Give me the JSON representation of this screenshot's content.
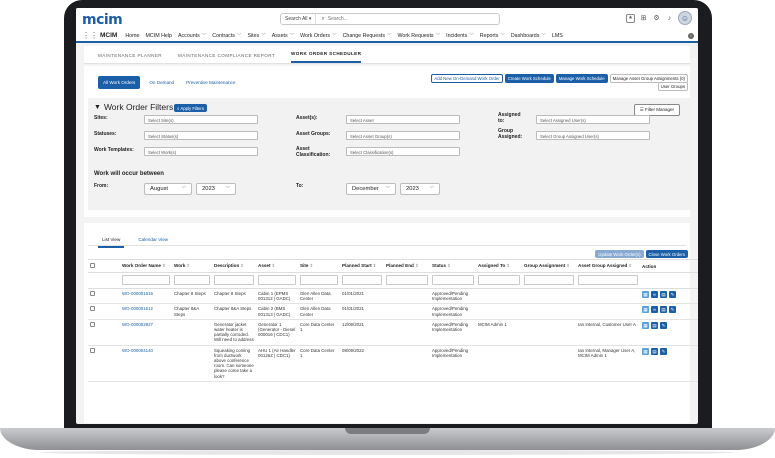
{
  "header": {
    "logo_text": "mcim",
    "search_scope": "Search All",
    "search_placeholder": "Search..."
  },
  "nav": {
    "app_name": "MCIM",
    "items": [
      "Home",
      "MCIM Help",
      "Accounts",
      "Contracts",
      "Sites",
      "Assets",
      "Work Orders",
      "Change Requests",
      "Work Requests",
      "Incidents",
      "Reports",
      "Dashboards",
      "LMS"
    ],
    "dropdown_flags": [
      false,
      false,
      true,
      true,
      true,
      true,
      true,
      true,
      true,
      true,
      true,
      true,
      false
    ]
  },
  "page_tabs": [
    "MAINTENANCE PLANNER",
    "MAINTENANCE COMPLIANCE REPORT",
    "WORK ORDER SCHEDULER"
  ],
  "sub_tabs": [
    "All Work Orders",
    "On Demand",
    "Preventive Maintenance"
  ],
  "actions": {
    "new_on_demand": "Add New On-Demand Work Order",
    "create_schedule": "Create Work Schedule",
    "manage_schedule": "Manage Work Schedule",
    "manage_asset_groups": "Manage Asset Group Assignments (0)",
    "user_groups": "User Groups"
  },
  "filters": {
    "title": "Work Order Filters",
    "apply": "Apply Filters",
    "manager": "Filter Manager",
    "sites_label": "Sites:",
    "sites_ph": "Select Site(s)",
    "statuses_label": "Statuses:",
    "statuses_ph": "Select Status(s)",
    "templates_label": "Work Templates:",
    "templates_ph": "Select Work(s)",
    "assets_label": "Asset(s):",
    "assets_ph": "Select Asset",
    "asset_groups_label": "Asset Groups:",
    "asset_groups_ph": "Select Asset Group(s)",
    "asset_class_label": "Asset Classification:",
    "asset_class_ph": "Select Classification(s)",
    "assigned_to_label": "Assigned to:",
    "assigned_to_ph": "Select Assigned User(s)",
    "group_assigned_label": "Group Assigned:",
    "group_assigned_ph": "Select Group Assigned User(s)",
    "occur_title": "Work will occur between",
    "from_label": "From:",
    "to_label": "To:",
    "from_month": "August",
    "from_year": "2023",
    "to_month": "December",
    "to_year": "2023"
  },
  "list": {
    "tabs": [
      "List View",
      "Calendar View"
    ],
    "update_btn": "Update Work Order(s)",
    "close_btn": "Close Work Orders",
    "columns": [
      "Work Order Name",
      "Work",
      "Description",
      "Asset",
      "Site",
      "Planned Start",
      "Planned End",
      "Status",
      "Assigned To",
      "Group Assignment",
      "Asset Group Assigned",
      "Action"
    ],
    "rows": [
      {
        "name": "WO-000001616",
        "work": "Chapter 8 Steps",
        "description": "Chapter 8 Steps",
        "asset": "Cabin 1 (EPMS 001312 | GADC)",
        "site": "Glen Allen Data Center",
        "start": "01/01/2021",
        "end": "",
        "status": "Approved/Pending Implementation",
        "assigned": "",
        "group": "",
        "asset_group": ""
      },
      {
        "name": "WO-000001612",
        "work": "Chapter 8&A Steps",
        "description": "Chapter 8&A Steps",
        "asset": "Cabin 2 (BMS 001313 | GADC)",
        "site": "Glen Allen Data Center",
        "start": "01/01/2021",
        "end": "",
        "status": "Approved/Pending Implementation",
        "assigned": "",
        "group": "",
        "asset_group": ""
      },
      {
        "name": "WO-000002827",
        "work": "",
        "description": "Generator jacket water heater is partially corroded. Will need to address",
        "asset": "Generator 1 (Generator - Diesel 000016 | CDC1)",
        "site": "Core Data Center 1",
        "start": "12/09/2021",
        "end": "",
        "status": "Approved/Pending Implementation",
        "assigned": "MCIM Admin 1",
        "group": "",
        "asset_group": "Ian Internal, Customer User A"
      },
      {
        "name": "WO-000004140",
        "work": "",
        "description": "Squeaking coming from ductwork above conference room. Can someone please come take a look?",
        "asset": "AHU 1 (Air Handler 00126Z | CDC1)",
        "site": "Core Data Center 1",
        "start": "08/09/2022",
        "end": "",
        "status": "Approved/Pending Implementation",
        "assigned": "",
        "group": "",
        "asset_group": "Ian Internal, Manager User A, MCIM Admin 1"
      }
    ]
  }
}
